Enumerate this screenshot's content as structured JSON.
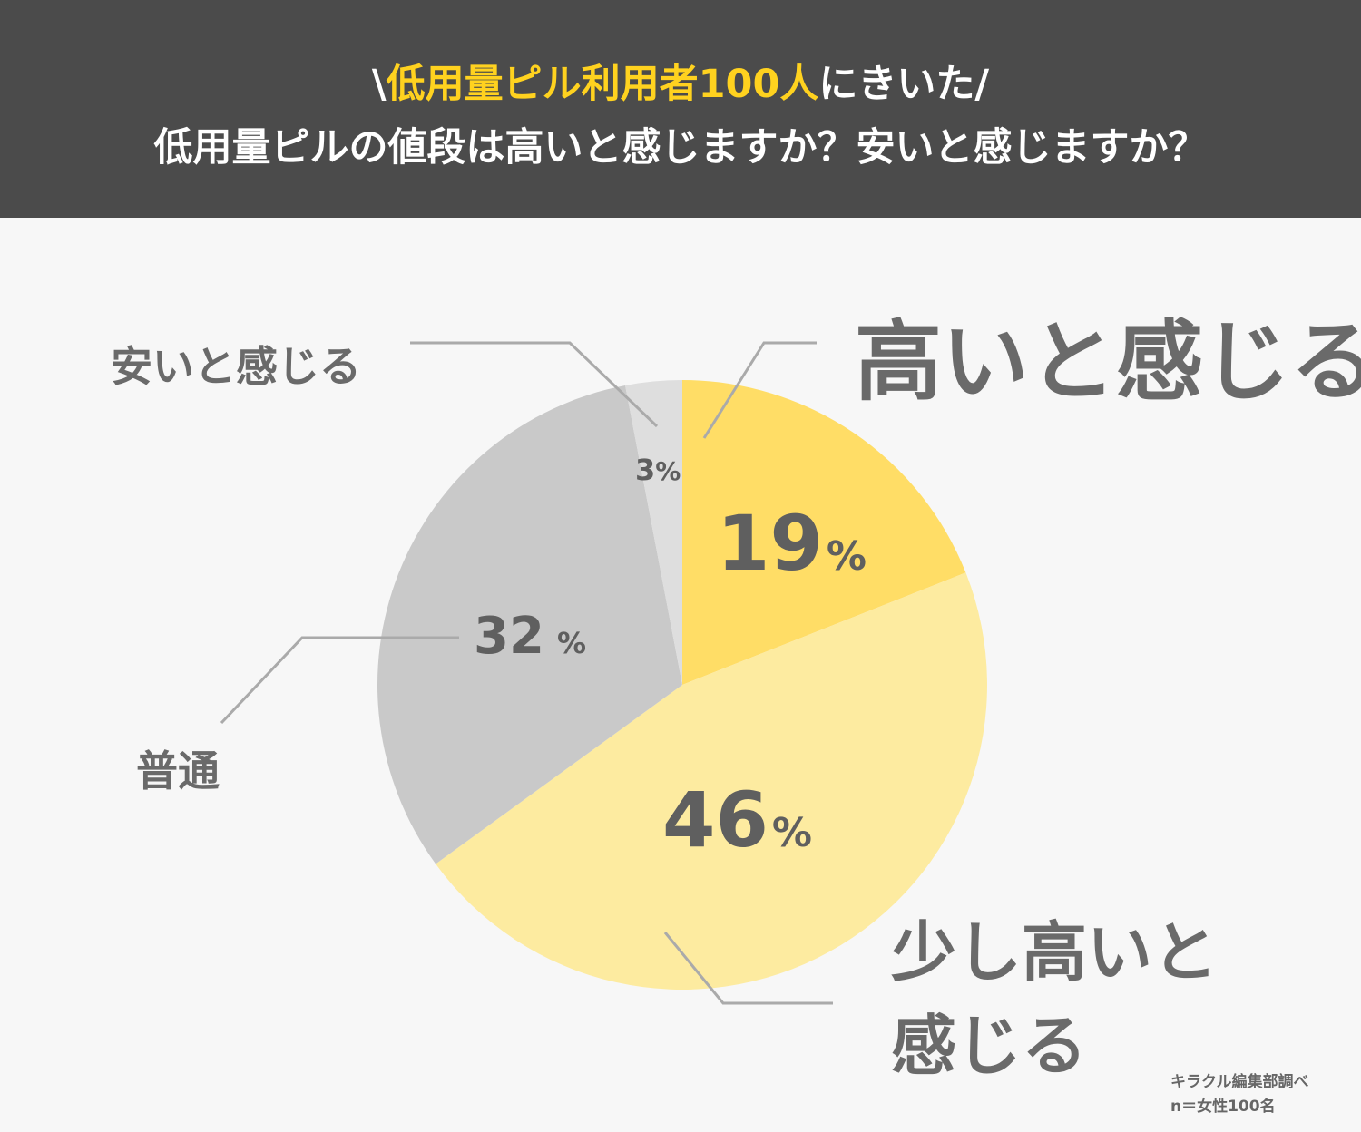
{
  "header": {
    "line1_prefix": "\\",
    "line1_highlight": "低用量ピル利用者100人",
    "line1_suffix": "にきいた/",
    "line2": "低用量ピルの値段は高いと感じますか？安いと感じますか？"
  },
  "colors": {
    "header_bg": "#4b4b4b",
    "highlight": "#ffd21f",
    "slice_high": "#ffdd66",
    "slice_slightly_high": "#fdeba0",
    "slice_normal": "#c9c9c9",
    "slice_cheap": "#dedede",
    "leader_line": "#aaaaaa"
  },
  "chart_data": {
    "type": "pie",
    "start": "top, clockwise",
    "slices": [
      {
        "label": "高いと感じる",
        "value": 19,
        "value_text": "19",
        "unit": "%"
      },
      {
        "label_lines": [
          "少し高いと",
          "感じる"
        ],
        "value": 46,
        "value_text": "46",
        "unit": "%"
      },
      {
        "label": "普通",
        "value": 32,
        "value_text": "32",
        "unit": "%"
      },
      {
        "label": "安いと感じる",
        "value": 3,
        "value_text": "3",
        "unit": "%"
      }
    ]
  },
  "source": {
    "line1": "キラクル編集部調べ",
    "line2": "n＝女性100名"
  }
}
